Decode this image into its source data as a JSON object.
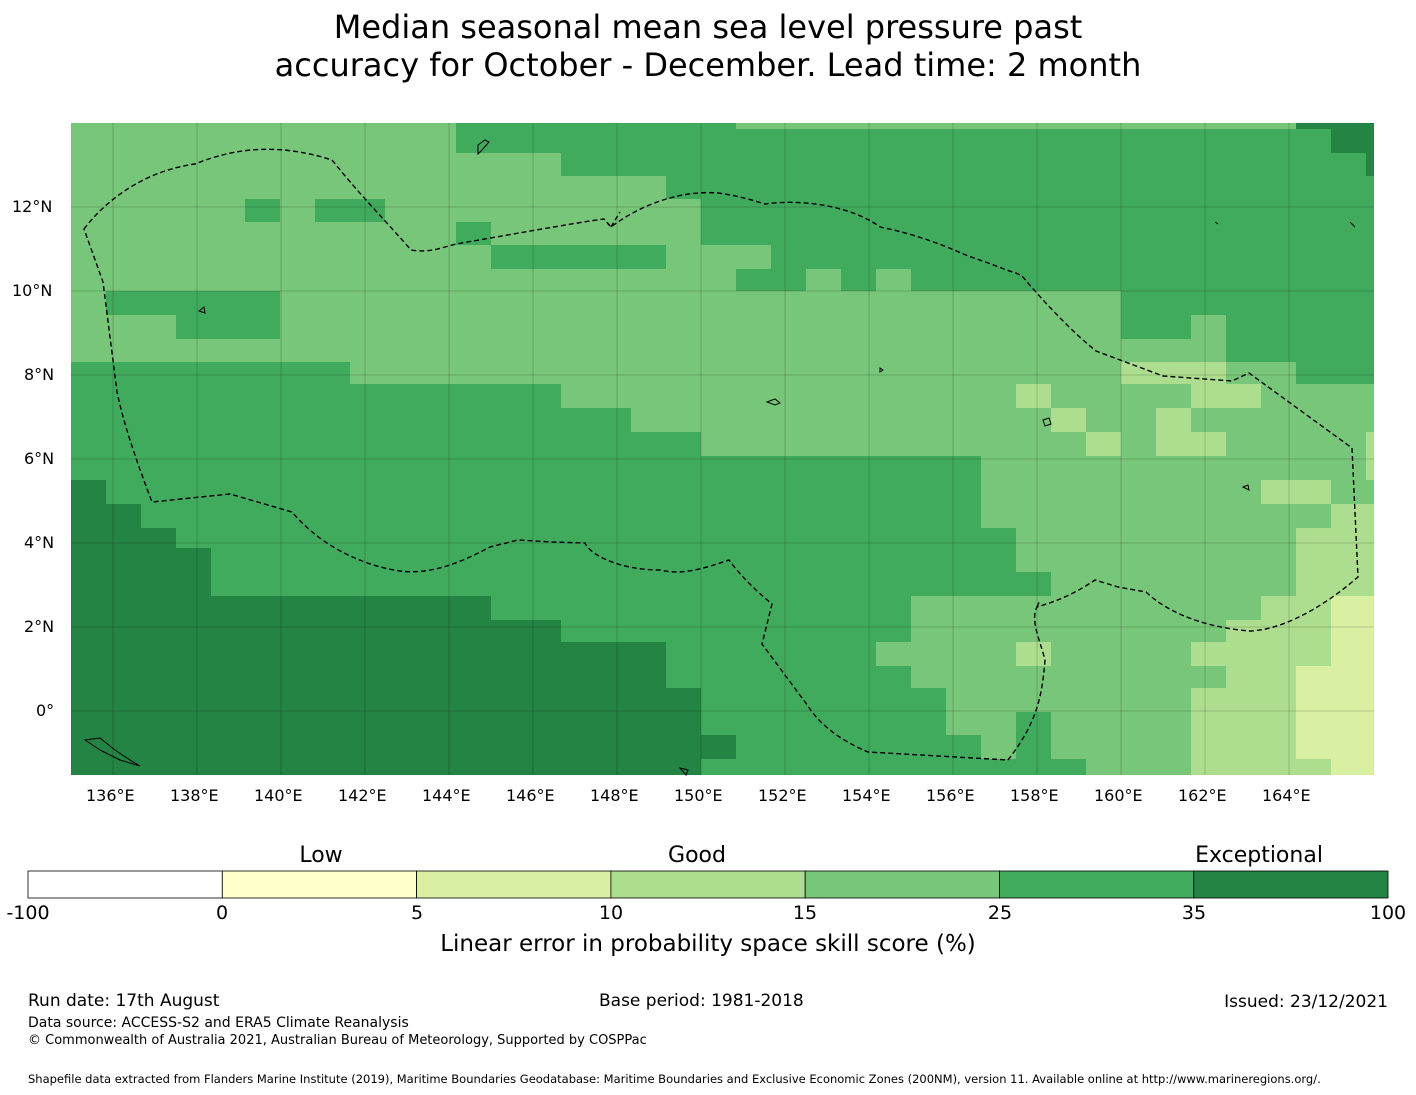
{
  "title": {
    "line1": "Median seasonal mean sea level pressure past",
    "line2": "accuracy for October - December. Lead time: 2 month"
  },
  "map": {
    "lon_labels": [
      "136°E",
      "138°E",
      "140°E",
      "142°E",
      "144°E",
      "146°E",
      "148°E",
      "150°E",
      "152°E",
      "154°E",
      "156°E",
      "158°E",
      "160°E",
      "162°E",
      "164°E"
    ],
    "lat_labels": [
      "12°N",
      "10°N",
      "8°N",
      "6°N",
      "4°N",
      "2°N",
      "0°"
    ],
    "boundary_style": "dashed",
    "colors": {
      "background": "#78c679",
      "band_0_5": "#ffffcc",
      "band_5_10": "#d9f0a3",
      "band_10_15": "#addd8e",
      "band_15_25": "#78c679",
      "band_25_35": "#41ab5d",
      "band_35_100": "#238443"
    }
  },
  "legend": {
    "category_low": "Low",
    "category_good": "Good",
    "category_exceptional": "Exceptional",
    "ticks": [
      "-100",
      "0",
      "5",
      "10",
      "15",
      "25",
      "35",
      "100"
    ],
    "colors": [
      "#ffffff",
      "#ffffcc",
      "#d9f0a3",
      "#addd8e",
      "#78c679",
      "#41ab5d",
      "#238443"
    ],
    "title": "Linear error in probability space skill score (%)"
  },
  "footer": {
    "run_date": "Run date: 17th August",
    "base_period": "Base period: 1981-2018",
    "issued": "Issued: 23/12/2021",
    "data_source": "Data source: ACCESS-S2 and ERA5 Climate Reanalysis",
    "copyright": "© Commonwealth of Australia 2021, Australian Bureau of Meteorology, Supported by COSPPac",
    "shapefile": "Shapefile data extracted from Flanders Marine Institute (2019), Maritime Boundaries Geodatabase: Maritime Boundaries and Exclusive Economic Zones (200NM), version 11. Available online at http://www.marineregions.org/."
  }
}
